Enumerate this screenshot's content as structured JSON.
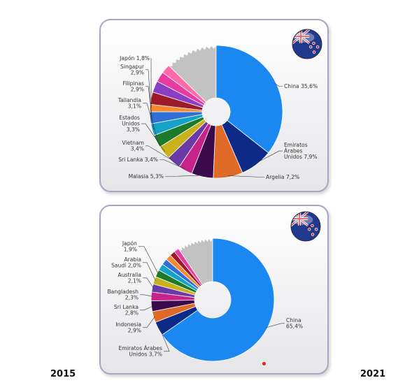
{
  "years": {
    "left": "2015",
    "right": "2021"
  },
  "chart_data": [
    {
      "type": "pie",
      "variant": "donut",
      "year": "2015",
      "flag_icon": "new-zealand-flag-icon",
      "labeled": [
        {
          "name": "China",
          "value": 35.6,
          "color": "#1a88f0",
          "text": [
            "China 35,6%"
          ]
        },
        {
          "name": "Emiratos Árabes Unidos",
          "value": 7.9,
          "color": "#0c2a86",
          "text": [
            "Emiratos",
            "Árabes",
            "Unidos 7,9%"
          ]
        },
        {
          "name": "Argelia",
          "value": 7.2,
          "color": "#e06a28",
          "text": [
            "Argelia 7,2%"
          ]
        },
        {
          "name": "Malasia",
          "value": 5.3,
          "color": "#3a0a4a",
          "text": [
            "Malasia 5,3%"
          ]
        },
        {
          "name": "Sri Lanka",
          "value": 3.4,
          "color": "#c8238a",
          "text": [
            "Sri Lanka 3,4%"
          ]
        },
        {
          "name": "Vietnam",
          "value": 3.4,
          "color": "#6a3aa8",
          "text": [
            "Vietnam",
            "3,4%"
          ]
        },
        {
          "name": "Estados Unidos",
          "value": 3.3,
          "color": "#c9b21b",
          "text": [
            "Estados",
            "Unidos",
            "3,3%"
          ]
        },
        {
          "name": "Tailandia",
          "value": 3.1,
          "color": "#1c7a2a",
          "text": [
            "Tailandia",
            "3,1%"
          ]
        },
        {
          "name": "Filipinas",
          "value": 2.9,
          "color": "#16a2c8",
          "text": [
            "Filipinas",
            "2,9%"
          ]
        },
        {
          "name": "Singapur",
          "value": 2.9,
          "color": "#2f6fd8",
          "text": [
            "Singapur",
            "2,9%"
          ]
        },
        {
          "name": "Japón",
          "value": 1.8,
          "color": "#f7892e",
          "text": [
            "Japón 1,8%"
          ]
        }
      ],
      "unlabeled": [
        {
          "value": 3.0,
          "color": "#9f1a28"
        },
        {
          "value": 2.8,
          "color": "#8a3fc2"
        },
        {
          "value": 2.5,
          "color": "#e83aa0"
        },
        {
          "value": 2.2,
          "color": "#ff6aa8"
        }
      ],
      "rest": {
        "value": 12.7,
        "color": "#c2c2c2"
      }
    },
    {
      "type": "pie",
      "variant": "donut",
      "year": "2021",
      "flag_icon": "new-zealand-flag-icon",
      "labeled": [
        {
          "name": "China",
          "value": 65.4,
          "color": "#1a88f0",
          "text": [
            "China",
            "65,4%"
          ]
        },
        {
          "name": "Emiratos Árabes Unidos",
          "value": 3.7,
          "color": "#0c2a86",
          "text": [
            "Emiratos Árabes",
            "Unidos 3,7%"
          ]
        },
        {
          "name": "Indonesia",
          "value": 2.9,
          "color": "#e06a28",
          "text": [
            "Indonesia",
            "2,9%"
          ]
        },
        {
          "name": "Sri Lanka",
          "value": 2.8,
          "color": "#3a0a4a",
          "text": [
            "Sri Lanka",
            "2,8%"
          ]
        },
        {
          "name": "Bangladesh",
          "value": 2.3,
          "color": "#c8238a",
          "text": [
            "Bangladesh",
            "2,3%"
          ]
        },
        {
          "name": "Australia",
          "value": 2.1,
          "color": "#6a3aa8",
          "text": [
            "Australia",
            "2,1%"
          ]
        },
        {
          "name": "Arabia Saudí",
          "value": 2.0,
          "color": "#c9b21b",
          "text": [
            "Arabia",
            "Saudí 2,0%"
          ]
        },
        {
          "name": "Japón",
          "value": 1.9,
          "color": "#1c7a2a",
          "text": [
            "Japón",
            "1,9%"
          ]
        }
      ],
      "unlabeled": [
        {
          "value": 1.8,
          "color": "#16a2c8"
        },
        {
          "value": 1.6,
          "color": "#2f6fd8"
        },
        {
          "value": 1.5,
          "color": "#f7892e"
        },
        {
          "value": 1.4,
          "color": "#9f1a28"
        },
        {
          "value": 1.3,
          "color": "#e83aa0"
        }
      ],
      "rest": {
        "value": 9.4,
        "color": "#c2c2c2"
      }
    }
  ]
}
